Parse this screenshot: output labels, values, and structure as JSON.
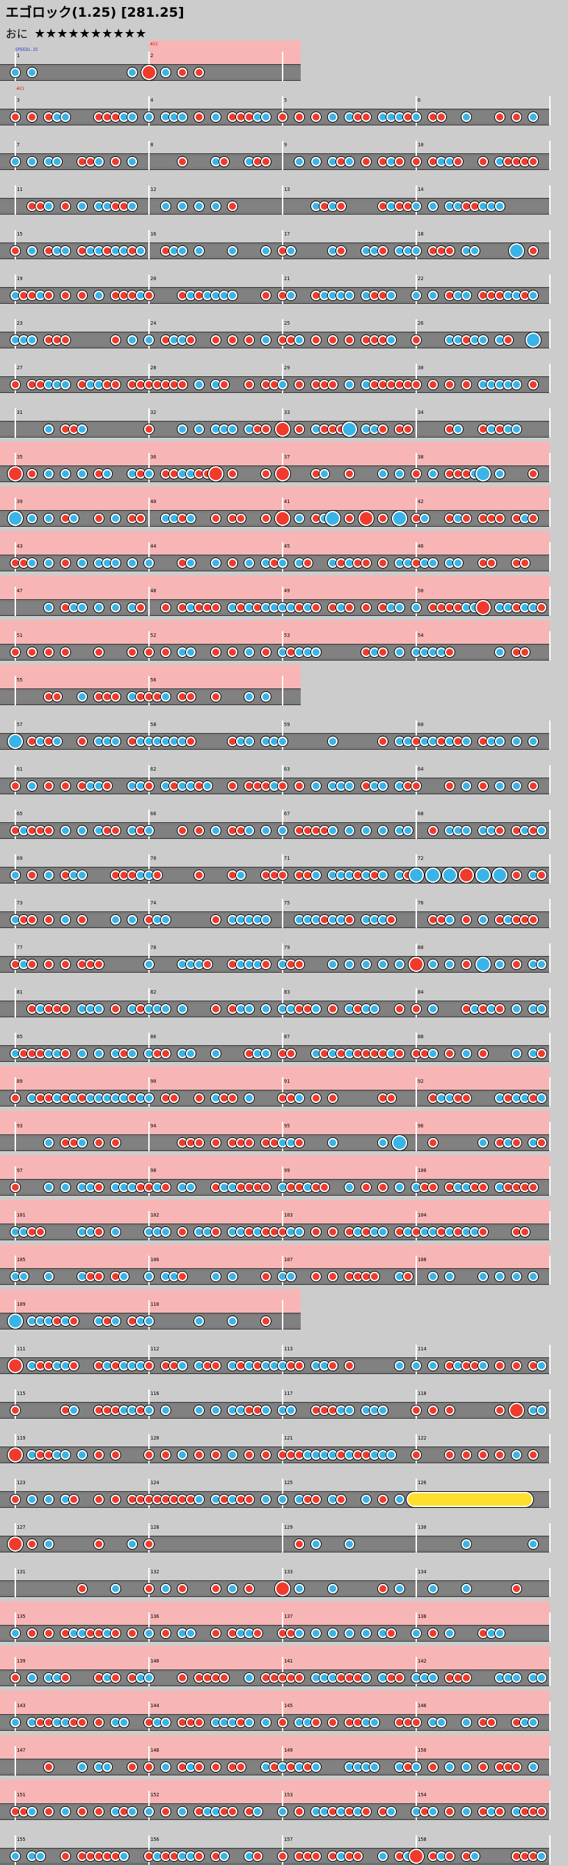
{
  "header": {
    "title": "エゴロック(1.25) [281.25]",
    "difficulty_label": "おに",
    "stars": "★★★★★★★★★★",
    "star_count": 10
  },
  "colors": {
    "background": "#cccccc",
    "gogo_strip": "#f8b5b5",
    "lane": "#7c7c7c",
    "don": "#f03a2c",
    "ka": "#38b4e8",
    "roll": "#ffdf2e"
  },
  "events": [
    {
      "row": 0,
      "text": "SPEED1.25",
      "color": "#1a3cd0"
    },
    {
      "row": 0,
      "text": "#22",
      "color": "#d01818",
      "at_measure": 1
    },
    {
      "row": 1,
      "text": "#21",
      "color": "#d01818",
      "at_measure": 0
    }
  ],
  "rows": [
    {
      "measures": [
        1,
        2
      ],
      "first_note": "ka",
      "gogo": [
        false,
        true
      ],
      "big": [
        [
          1,
          0
        ]
      ],
      "sparse": true
    },
    {
      "measures": [
        3,
        4,
        5,
        6
      ]
    },
    {
      "measures": [
        7,
        8,
        9,
        10
      ]
    },
    {
      "measures": [
        11,
        12,
        13,
        14
      ]
    },
    {
      "measures": [
        15,
        16,
        17,
        18
      ],
      "big": [
        [
          3,
          6
        ]
      ]
    },
    {
      "measures": [
        19,
        20,
        21,
        22
      ]
    },
    {
      "measures": [
        23,
        24,
        25,
        26
      ],
      "big": [
        [
          3,
          7
        ]
      ]
    },
    {
      "measures": [
        27,
        28,
        29,
        30
      ]
    },
    {
      "measures": [
        31,
        32,
        33,
        34
      ],
      "big": [
        [
          2,
          0
        ],
        [
          2,
          4
        ]
      ]
    },
    {
      "measures": [
        35,
        36,
        37,
        38
      ],
      "gogo": [
        true,
        true,
        true,
        true
      ],
      "big": [
        [
          0,
          0
        ],
        [
          1,
          4
        ],
        [
          2,
          0
        ],
        [
          3,
          4
        ]
      ]
    },
    {
      "measures": [
        39,
        40,
        41,
        42
      ],
      "gogo": [
        true,
        true,
        true,
        true
      ],
      "big": [
        [
          0,
          0
        ],
        [
          2,
          0
        ],
        [
          2,
          3
        ],
        [
          2,
          5
        ],
        [
          2,
          7
        ]
      ]
    },
    {
      "measures": [
        43,
        44,
        45,
        46
      ],
      "gogo": [
        true,
        true,
        true,
        true
      ]
    },
    {
      "measures": [
        47,
        48,
        49,
        50
      ],
      "gogo": [
        true,
        true,
        true,
        true
      ],
      "big": [
        [
          3,
          4
        ]
      ]
    },
    {
      "measures": [
        51,
        52,
        53,
        54
      ],
      "gogo": [
        true,
        true,
        true,
        true
      ]
    },
    {
      "measures": [
        55,
        56
      ],
      "gogo": [
        true,
        true
      ]
    },
    {
      "measures": [
        57,
        58,
        59,
        60
      ],
      "big": [
        [
          0,
          0
        ]
      ]
    },
    {
      "measures": [
        61,
        62,
        63,
        64
      ]
    },
    {
      "measures": [
        65,
        66,
        67,
        68
      ]
    },
    {
      "measures": [
        69,
        70,
        71,
        72
      ],
      "big": [
        [
          3,
          0
        ],
        [
          3,
          1
        ],
        [
          3,
          2
        ],
        [
          3,
          3
        ],
        [
          3,
          4
        ],
        [
          3,
          5
        ]
      ]
    },
    {
      "measures": [
        73,
        74,
        75,
        76
      ]
    },
    {
      "measures": [
        77,
        78,
        79,
        80
      ],
      "big": [
        [
          3,
          0
        ],
        [
          3,
          4
        ]
      ]
    },
    {
      "measures": [
        81,
        82,
        83,
        84
      ]
    },
    {
      "measures": [
        85,
        86,
        87,
        88
      ]
    },
    {
      "measures": [
        89,
        90,
        91,
        92
      ],
      "gogo": [
        true,
        true,
        true,
        true
      ]
    },
    {
      "measures": [
        93,
        94,
        95,
        96
      ],
      "gogo": [
        true,
        true,
        true,
        true
      ],
      "big": [
        [
          2,
          7
        ]
      ]
    },
    {
      "measures": [
        97,
        98,
        99,
        100
      ],
      "gogo": [
        true,
        true,
        true,
        true
      ]
    },
    {
      "measures": [
        101,
        102,
        103,
        104
      ],
      "gogo": [
        true,
        true,
        true,
        true
      ]
    },
    {
      "measures": [
        105,
        106,
        107,
        108
      ],
      "gogo": [
        true,
        true,
        true,
        true
      ]
    },
    {
      "measures": [
        109,
        110
      ],
      "gogo": [
        true,
        true
      ],
      "big": [
        [
          0,
          0
        ]
      ]
    },
    {
      "measures": [
        111,
        112,
        113,
        114
      ],
      "big": [
        [
          0,
          0
        ]
      ]
    },
    {
      "measures": [
        115,
        116,
        117,
        118
      ],
      "big": [
        [
          3,
          6
        ]
      ]
    },
    {
      "measures": [
        119,
        120,
        121,
        122
      ],
      "big": [
        [
          0,
          0
        ]
      ]
    },
    {
      "measures": [
        123,
        124,
        125,
        126
      ],
      "roll": {
        "measure": 3
      }
    },
    {
      "measures": [
        127,
        128,
        129,
        130
      ],
      "big": [
        [
          0,
          0
        ]
      ],
      "sparse": true
    },
    {
      "measures": [
        131,
        132,
        133,
        134
      ],
      "big": [
        [
          2,
          0
        ]
      ],
      "sparse": true
    },
    {
      "measures": [
        135,
        136,
        137,
        138
      ],
      "gogo": [
        true,
        true,
        true,
        true
      ]
    },
    {
      "measures": [
        139,
        140,
        141,
        142
      ],
      "gogo": [
        true,
        true,
        true,
        true
      ]
    },
    {
      "measures": [
        143,
        144,
        145,
        146
      ],
      "gogo": [
        true,
        true,
        true,
        true
      ]
    },
    {
      "measures": [
        147,
        148,
        149,
        150
      ],
      "gogo": [
        true,
        true,
        true,
        true
      ]
    },
    {
      "measures": [
        151,
        152,
        153,
        154
      ],
      "gogo": [
        true,
        true,
        true,
        true
      ]
    },
    {
      "measures": [
        155,
        156,
        157,
        158
      ],
      "big": [
        [
          3,
          0
        ]
      ]
    }
  ]
}
